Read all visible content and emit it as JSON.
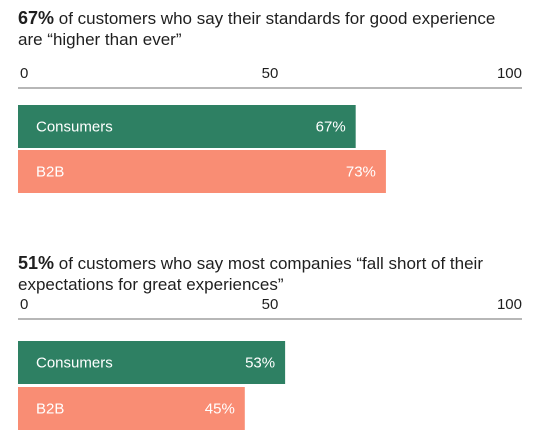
{
  "chart_data": [
    {
      "type": "bar",
      "orientation": "horizontal",
      "title_highlight": "67%",
      "title": "of customers who say their standards for good experience are “higher than ever”",
      "xlim": [
        0,
        100
      ],
      "ticks": [
        "0",
        "50",
        "100"
      ],
      "categories": [
        "Consumers",
        "B2B"
      ],
      "values": [
        67,
        73
      ],
      "value_labels": [
        "67%",
        "73%"
      ],
      "colors": [
        "#2e8063",
        "#f98d74"
      ]
    },
    {
      "type": "bar",
      "orientation": "horizontal",
      "title_highlight": "51%",
      "title": "of customers who say most companies “fall short of their expectations for great experiences”",
      "xlim": [
        0,
        100
      ],
      "ticks": [
        "0",
        "50",
        "100"
      ],
      "categories": [
        "Consumers",
        "B2B"
      ],
      "values": [
        53,
        45
      ],
      "value_labels": [
        "53%",
        "45%"
      ],
      "colors": [
        "#2e8063",
        "#f98d74"
      ]
    }
  ]
}
